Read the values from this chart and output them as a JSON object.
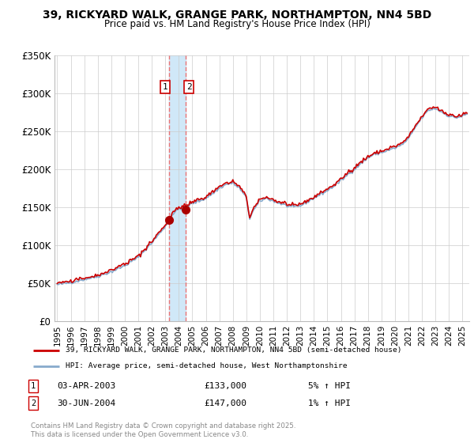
{
  "title1": "39, RICKYARD WALK, GRANGE PARK, NORTHAMPTON, NN4 5BD",
  "title2": "Price paid vs. HM Land Registry's House Price Index (HPI)",
  "legend_line1": "39, RICKYARD WALK, GRANGE PARK, NORTHAMPTON, NN4 5BD (semi-detached house)",
  "legend_line2": "HPI: Average price, semi-detached house, West Northamptonshire",
  "footer": "Contains HM Land Registry data © Crown copyright and database right 2025.\nThis data is licensed under the Open Government Licence v3.0.",
  "transaction1_date": "03-APR-2003",
  "transaction1_price": "£133,000",
  "transaction1_hpi": "5% ↑ HPI",
  "transaction2_date": "30-JUN-2004",
  "transaction2_price": "£147,000",
  "transaction2_hpi": "1% ↑ HPI",
  "marker1_x": 2003.25,
  "marker1_y": 133000,
  "marker2_x": 2004.5,
  "marker2_y": 147000,
  "vline1_x": 2003.25,
  "vline2_x": 2004.5,
  "shade_color": "#d0e8f8",
  "ylim": [
    0,
    350000
  ],
  "xlim_start": 1995,
  "xlim_end": 2025.5,
  "line_color_red": "#cc0000",
  "line_color_blue": "#88aacc",
  "grid_color": "#cccccc",
  "bg_color": "#ffffff",
  "vline_color": "#ee6666",
  "xtick_years": [
    1995,
    1996,
    1997,
    1998,
    1999,
    2000,
    2001,
    2002,
    2003,
    2004,
    2005,
    2006,
    2007,
    2008,
    2009,
    2010,
    2011,
    2012,
    2013,
    2014,
    2015,
    2016,
    2017,
    2018,
    2019,
    2020,
    2021,
    2022,
    2023,
    2024,
    2025
  ],
  "ytick_values": [
    0,
    50000,
    100000,
    150000,
    200000,
    250000,
    300000,
    350000
  ],
  "ytick_labels": [
    "£0",
    "£50K",
    "£100K",
    "£150K",
    "£200K",
    "£250K",
    "£300K",
    "£350K"
  ]
}
